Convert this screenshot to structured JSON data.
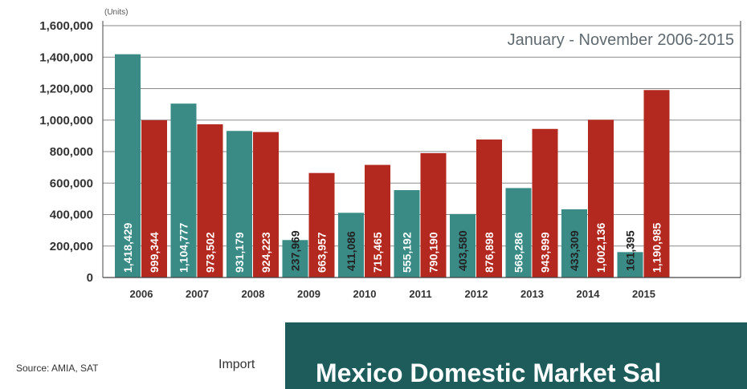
{
  "chart_data": {
    "type": "bar",
    "unit_label": "(Units)",
    "subtitle": "January - November 2006-2015",
    "categories": [
      "2006",
      "2007",
      "2008",
      "2009",
      "2010",
      "2011",
      "2012",
      "2013",
      "2014",
      "2015"
    ],
    "series": [
      {
        "color": "#3a8a86",
        "values": [
          1418429,
          1104777,
          931179,
          237969,
          411086,
          555192,
          403580,
          568286,
          433309,
          161395
        ],
        "labels": [
          "1,418,429",
          "1,104,777",
          "931,179",
          "237,969",
          "411,086",
          "555,192",
          "403,580",
          "568,286",
          "433,309",
          "161,395"
        ]
      },
      {
        "color": "#b3281f",
        "values": [
          999344,
          973502,
          924223,
          663957,
          715465,
          790190,
          876898,
          943999,
          1002136,
          1190985
        ],
        "labels": [
          "999,344",
          "973,502",
          "924,223",
          "663,957",
          "715,465",
          "790,190",
          "876,898",
          "943,999",
          "1,002,136",
          "1,190,985"
        ]
      }
    ],
    "ylim": [
      0,
      1600000
    ],
    "yticks": [
      0,
      200000,
      400000,
      600000,
      800000,
      1000000,
      1200000,
      1400000,
      1600000
    ],
    "ytick_labels": [
      "0",
      "200,000",
      "400,000",
      "600,000",
      "800,000",
      "1,000,000",
      "1,200,000",
      "1,400,000",
      "1,600,000"
    ],
    "grid": true
  },
  "footer": {
    "source": "Source: AMIA, SAT",
    "caption_fragment": "Import"
  },
  "banner": {
    "title": "Mexico Domestic Market Sal",
    "color": "#1d5c5a"
  }
}
